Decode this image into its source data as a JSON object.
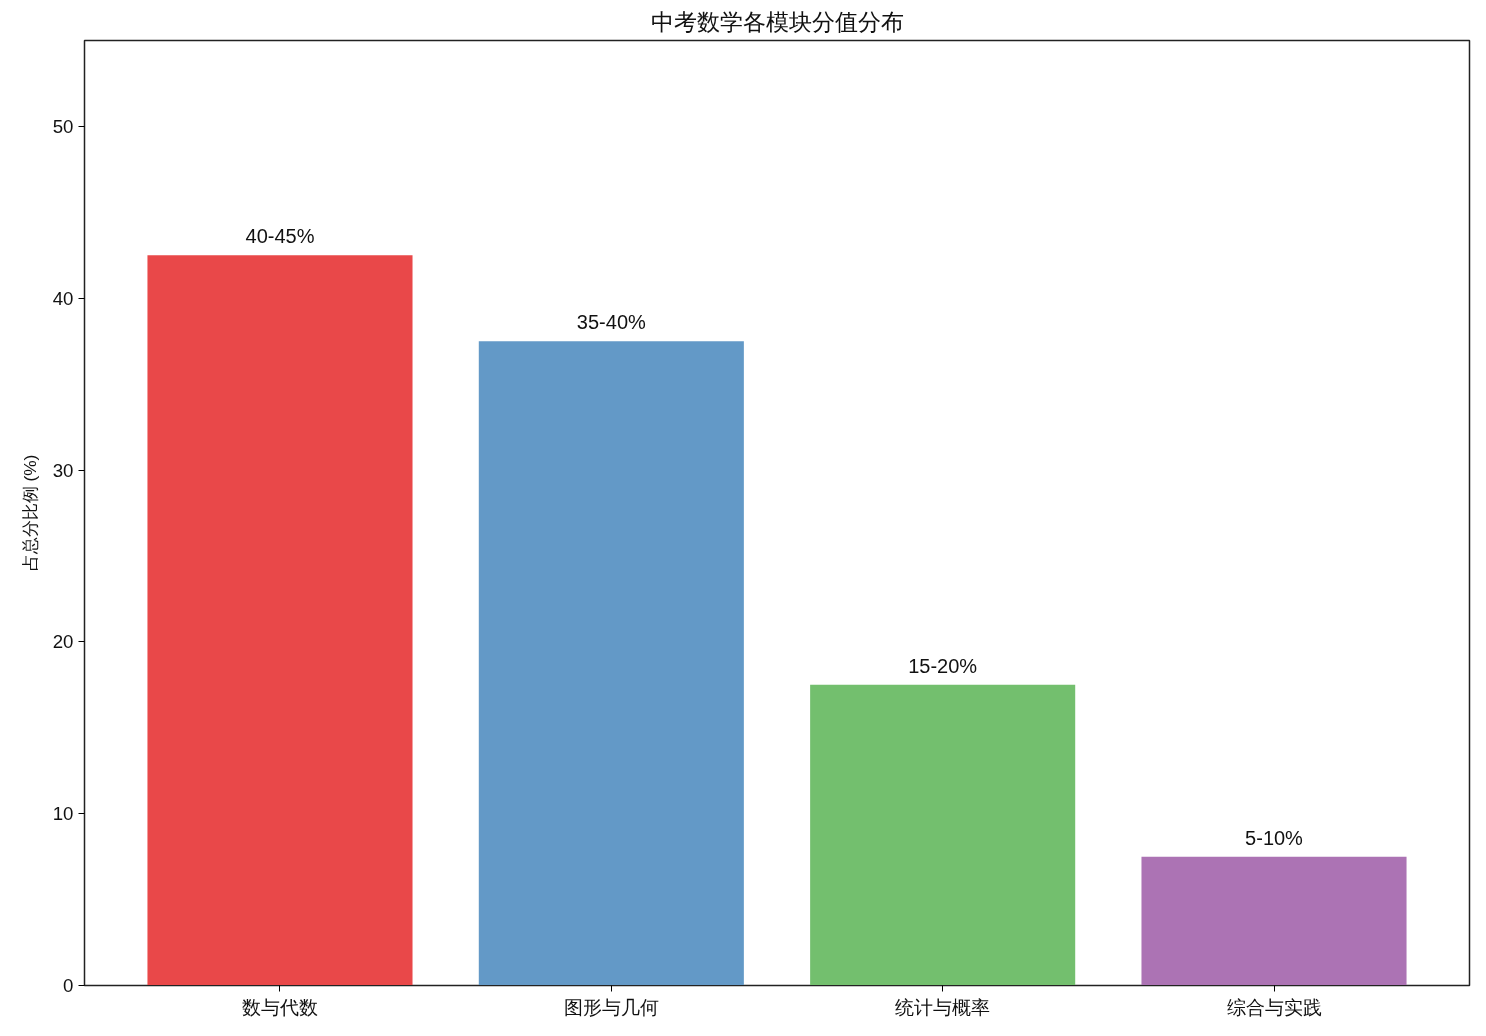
{
  "chart_data": {
    "type": "bar",
    "title": "中考数学各模块分值分布",
    "ylabel": "占总分比例 (%)",
    "categories": [
      "数与代数",
      "图形与几何",
      "统计与概率",
      "综合与实践"
    ],
    "values": [
      42.5,
      37.5,
      17.5,
      7.5
    ],
    "colors": [
      "#e94849",
      "#6399c7",
      "#73bf6e",
      "#ac73b4"
    ],
    "annotations": [
      {
        "text": "40-45%",
        "x": "数与代数",
        "y": 42.5
      },
      {
        "text": "35-40%",
        "x": "图形与几何",
        "y": 37.5
      },
      {
        "text": "15-20%",
        "x": "统计与概率",
        "y": 17.5
      },
      {
        "text": "5-10%",
        "x": "综合与实践",
        "y": 7.5
      }
    ],
    "ylim": [
      0,
      55
    ],
    "yticks": [
      0,
      10,
      20,
      30,
      40,
      50
    ],
    "grid": false,
    "legend": false
  }
}
